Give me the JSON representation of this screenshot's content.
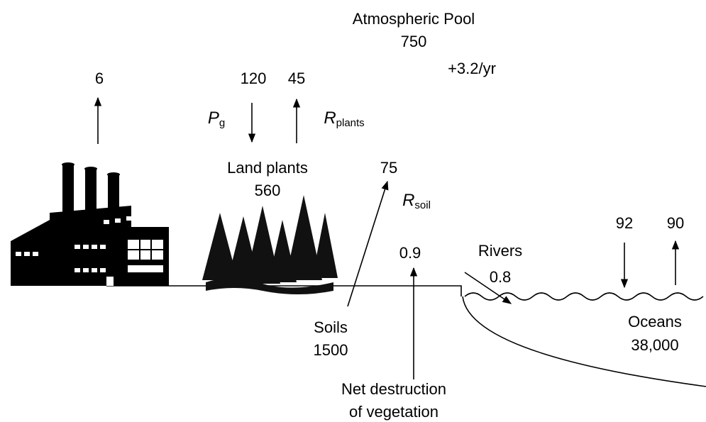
{
  "atmosphere": {
    "label": "Atmospheric Pool",
    "value": "750",
    "change": "+3.2/yr"
  },
  "flows": {
    "fossil": {
      "value": "6"
    },
    "photosynthesis": {
      "value": "120",
      "symbol": "P",
      "sub": "g"
    },
    "plant_respiration": {
      "value": "45",
      "symbol": "R",
      "sub": "plants"
    },
    "soil_respiration": {
      "value": "75",
      "symbol": "R",
      "sub": "soil"
    },
    "deforestation": {
      "value": "0.9",
      "label": [
        "Net destruction",
        "of vegetation"
      ]
    },
    "ocean_uptake": {
      "value": "92"
    },
    "ocean_release": {
      "value": "90"
    }
  },
  "pools": {
    "land_plants": {
      "label": "Land plants",
      "value": "560"
    },
    "soils": {
      "label": "Soils",
      "value": "1500"
    },
    "rivers": {
      "label": "Rivers",
      "value": "0.8"
    },
    "oceans": {
      "label": "Oceans",
      "value": "38,000"
    }
  }
}
